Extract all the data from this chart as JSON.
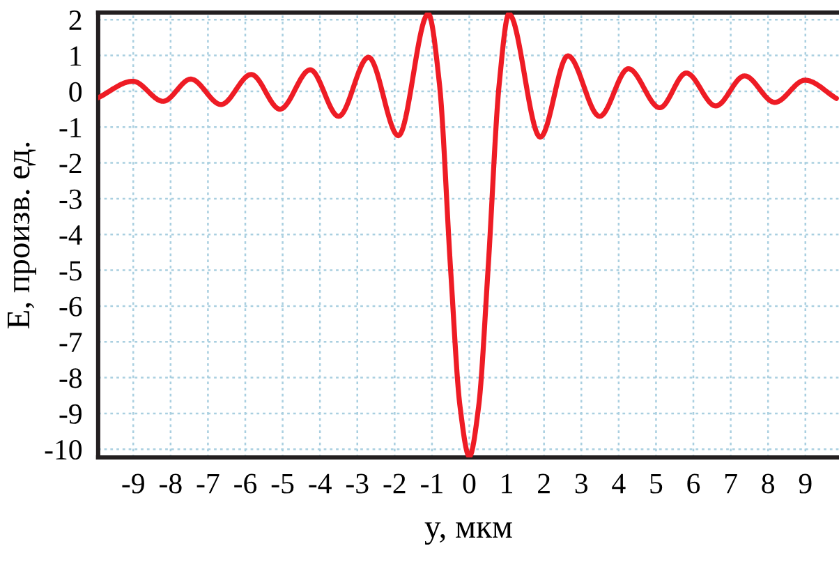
{
  "chart_data": {
    "type": "line",
    "xlabel": "y, мкм",
    "ylabel": "E, произв. ед.",
    "xlim": [
      -9.94,
      9.9
    ],
    "ylim": [
      -10.23,
      2.2
    ],
    "xticks": [
      -9,
      -8,
      -7,
      -6,
      -5,
      -4,
      -3,
      -2,
      -1,
      0,
      1,
      2,
      3,
      4,
      5,
      6,
      7,
      8,
      9
    ],
    "yticks": [
      2,
      1,
      0,
      -1,
      -2,
      -3,
      -4,
      -5,
      -6,
      -7,
      -8,
      -9,
      -10
    ],
    "grid": true,
    "marker": "none",
    "line_style": "solid",
    "series": [
      {
        "color": "#ee1c25",
        "x": [
          -9.94,
          -9.01,
          -8.2,
          -7.46,
          -6.65,
          -5.84,
          -5.07,
          -4.26,
          -3.5,
          -2.7,
          -1.9,
          -1.1,
          -0.8,
          -0.5,
          -0.25,
          0,
          0.25,
          0.5,
          0.8,
          1.06,
          1.9,
          2.64,
          3.49,
          4.26,
          5.1,
          5.81,
          6.6,
          7.37,
          8.18,
          8.99,
          9.83
        ],
        "values": [
          -0.18,
          0.28,
          -0.28,
          0.34,
          -0.37,
          0.47,
          -0.5,
          0.6,
          -0.7,
          0.95,
          -1.24,
          2.16,
          0.2,
          -5,
          -8.8,
          -10.2,
          -8.8,
          -5,
          0.2,
          2.16,
          -1.28,
          0.99,
          -0.7,
          0.63,
          -0.46,
          0.51,
          -0.41,
          0.43,
          -0.31,
          0.31,
          -0.2
        ]
      }
    ]
  }
}
